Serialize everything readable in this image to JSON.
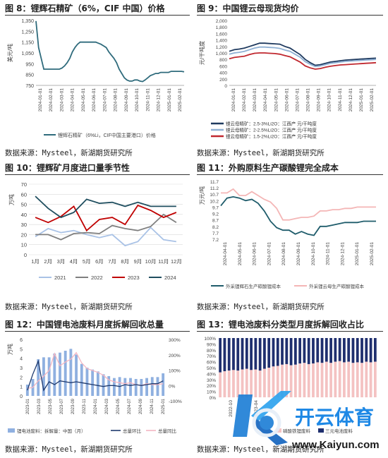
{
  "panels": {
    "p8": {
      "title": "图 8：锂辉石精矿（6%，CIF 中国）价格",
      "source": "数据来源：Mysteel，新湖期货研究所",
      "chart": {
        "type": "line",
        "ylabel": "美元/吨",
        "ylim": [
          750,
          1350
        ],
        "yticks": [
          "750",
          "850",
          "950",
          "1,050",
          "1,150",
          "1,250",
          "1,350"
        ],
        "xticks": [
          "2024-01-01",
          "2024-02-01",
          "2024-03-01",
          "2024-04-01",
          "2024-05-01",
          "2024-06-01",
          "2024-07-01",
          "2024-08-01",
          "2024-09-01",
          "2024-10-01",
          "2024-11-01",
          "2024-12-01",
          "2025-01-01",
          "2025-02-01"
        ],
        "series": [
          {
            "name": "锂辉石精矿（6%Li，CIF中国主要港口）价格",
            "color": "#2f6b7c",
            "values": [
              1345,
              1100,
              1000,
              900,
              900,
              900,
              900,
              900,
              900,
              900,
              910,
              930,
              960,
              1000,
              1060,
              1100,
              1130,
              1150,
              1150,
              1150,
              1150,
              1150,
              1150,
              1150,
              1140,
              1130,
              1115,
              1100,
              1060,
              1030,
              1000,
              960,
              900,
              860,
              820,
              800,
              790,
              790,
              800,
              800,
              790,
              785,
              800,
              820,
              840,
              850,
              860,
              860,
              870,
              870,
              870,
              870,
              880,
              880,
              880,
              880,
              880,
              875
            ]
          }
        ]
      }
    },
    "p9": {
      "title": "图 9：中国锂云母现货均价",
      "source": "数据来源：Mysteel，新湖期货研究所",
      "chart": {
        "type": "line",
        "ylabel": "元/干吨度",
        "ylim": [
          0,
          2000
        ],
        "yticks": [
          "0",
          "200",
          "400",
          "600",
          "800",
          "1,000",
          "1,200",
          "1,400",
          "1,600",
          "1,800",
          "2,000"
        ],
        "xticks": [
          "2024-01-01",
          "2024-02-01",
          "2024-03-01",
          "2024-04-01",
          "2024-05-01",
          "2024-06-01",
          "2024-07-01",
          "2024-08-01",
          "2024-09-01",
          "2024-10-01",
          "2024-11-01",
          "2024-12-01",
          "2025-01-01",
          "2025-02-01"
        ],
        "legend": [
          "锂云母精矿：2.5-3%Li2O：江西产 元/干吨度",
          "锂云母精矿：2-2.5%Li2O：江西产 元/干吨度",
          "锂云母精矿：1.5-2%Li2O：江西产 元/干吨度"
        ],
        "series": [
          {
            "name": "锂云母精矿：2.5-3%Li2O：江西产 元/干吨度",
            "color": "#1f3a5f",
            "values": [
              1050,
              1100,
              1120,
              1150,
              1200,
              1250,
              1300,
              1300,
              1290,
              1280,
              1270,
              1200,
              1150,
              1050,
              950,
              800,
              700,
              620,
              640,
              680,
              720,
              740,
              760,
              780,
              790,
              800,
              810,
              820,
              830,
              840
            ]
          },
          {
            "name": "锂云母精矿：2-2.5%Li2O：江西产 元/干吨度",
            "color": "#8fb0d4",
            "values": [
              960,
              1000,
              1020,
              1050,
              1100,
              1150,
              1180,
              1180,
              1170,
              1160,
              1140,
              1090,
              1050,
              960,
              870,
              730,
              650,
              580,
              600,
              640,
              680,
              700,
              720,
              740,
              750,
              760,
              770,
              780,
              790,
              800
            ]
          },
          {
            "name": "锂云母精矿：1.5-2%Li2O：江西产 元/干吨度",
            "color": "#c0282f",
            "values": [
              820,
              860,
              880,
              900,
              950,
              990,
              1000,
              1000,
              990,
              980,
              960,
              920,
              880,
              800,
              720,
              600,
              540,
              500,
              520,
              560,
              590,
              610,
              630,
              640,
              650,
              660,
              670,
              680,
              690,
              700
            ]
          }
        ]
      }
    },
    "p10": {
      "title": "图 10：锂辉矿月度进口量季节性",
      "source": "数据来源：Mysteel，新湖期货研究所",
      "chart": {
        "type": "line",
        "ylabel": "万吨",
        "ylim": [
          0,
          70
        ],
        "yticks": [
          "0",
          "10",
          "20",
          "30",
          "40",
          "50",
          "60",
          "70"
        ],
        "categories": [
          "1月",
          "2月",
          "3月",
          "4月",
          "5月",
          "6月",
          "7月",
          "8月",
          "9月",
          "10月",
          "11月",
          "12月"
        ],
        "series": [
          {
            "name": "2021",
            "color": "#a9c2e6",
            "values": [
              18,
              26,
              22,
              24,
              20,
              17,
              20,
              9,
              13,
              27,
              15,
              13
            ]
          },
          {
            "name": "2022",
            "color": "#7f7f7f",
            "values": [
              20,
              20,
              15,
              21,
              22,
              21,
              29,
              26,
              24,
              28,
              40,
              32
            ]
          },
          {
            "name": "2023",
            "color": "#c00000",
            "values": [
              37,
              32,
              38,
              48,
              24,
              35,
              37,
              30,
              49,
              44,
              37,
              42
            ]
          },
          {
            "name": "2024",
            "color": "#1f4e5f",
            "values": [
              58,
              46,
              37,
              42,
              55,
              51,
              52,
              48,
              52,
              48,
              48,
              48
            ]
          }
        ]
      }
    },
    "p11": {
      "title": "图 11：外购原料生产碳酸锂完全成本",
      "source": "数据来源：Mysteel，新湖期货研究所",
      "chart": {
        "type": "line",
        "ylabel": "万元/吨",
        "ylim": [
          7.2,
          11.7
        ],
        "yticks": [
          "7.2",
          "7.7",
          "8.2",
          "8.7",
          "9.2",
          "9.7",
          "10.2",
          "10.7",
          "11.2",
          "11.7"
        ],
        "xticks": [
          "2024-04-01",
          "2024-05-01",
          "2024-06-01",
          "2024-07-01",
          "2024-08-01",
          "2024-09-01",
          "2024-10-01",
          "2024-11-01",
          "2024-12-01",
          "2025-01-01",
          "2025-02-01"
        ],
        "series": [
          {
            "name": "外采锂辉石生产碳酸锂成本",
            "color": "#1f5c6b",
            "values": [
              9.8,
              10.4,
              10.5,
              10.4,
              10.2,
              10.3,
              10.0,
              9.4,
              8.6,
              8.1,
              7.9,
              7.9,
              7.6,
              7.8,
              7.6,
              7.5,
              8.2,
              8.2,
              8.3,
              8.4,
              8.5,
              8.5,
              8.5,
              8.6,
              8.6,
              8.6
            ]
          },
          {
            "name": "外采锂云母生产碳酸锂成本",
            "color": "#f4b6b6",
            "values": [
              10.8,
              10.8,
              11.1,
              10.6,
              10.6,
              10.9,
              10.6,
              10.3,
              10.1,
              9.6,
              8.7,
              8.7,
              8.8,
              8.9,
              8.9,
              9.0,
              9.4,
              9.4,
              9.5,
              9.5,
              9.6,
              9.6,
              9.7,
              9.7,
              9.7,
              9.7
            ]
          }
        ]
      }
    },
    "p12": {
      "title": "图 12：中国锂电池废料月度拆解回收总量",
      "source": "数据来源：Mysteel，新湖期货研究所",
      "chart": {
        "type": "bar",
        "ylabel": "万吨",
        "ylim": [
          0,
          6
        ],
        "yticks": [
          "0",
          "1",
          "2",
          "3",
          "4",
          "5",
          "6"
        ],
        "y2ticks": [
          "-100%",
          "0%",
          "100%",
          "200%",
          "300%"
        ],
        "xticks": [
          "2023-01",
          "2023-03",
          "2023-05",
          "2023-07",
          "2023-09",
          "2023-11",
          "2024-01",
          "2024-03",
          "2024-05",
          "2024-07",
          "2024-09",
          "2024-11",
          "2025-01"
        ],
        "legend": [
          "锂电池废料：拆解量：中国（月）",
          "总量环比",
          "总量同比"
        ],
        "bars": [
          1.2,
          1.8,
          3.9,
          4.1,
          4.1,
          4.5,
          4.6,
          4.8,
          5.0,
          4.4,
          3.4,
          3.0,
          2.8,
          2.6,
          2.3,
          2.1,
          1.9,
          2.0,
          1.9,
          1.9,
          1.8,
          1.8,
          1.9,
          2.0,
          2.0,
          2.4
        ],
        "mom": [
          0.6,
          2.3,
          3.7,
          0.6,
          1.5,
          1.2,
          1.6,
          1.5,
          1.4,
          1.5,
          1.4,
          1.3,
          1.2,
          1.1,
          1.0,
          1.1,
          1.1,
          1.0,
          1.2,
          1.1,
          1.2,
          1.1,
          1.2,
          1.3,
          1.3,
          1.6
        ],
        "yoy": [
          0.8,
          0.9,
          1.6,
          2.1,
          2.7,
          4.5,
          3.2,
          3.6,
          3.9,
          4.6,
          3.5,
          2.9,
          2.7,
          2.5,
          2.2,
          1.7,
          1.5,
          1.4,
          1.3,
          1.4,
          1.2,
          1.1,
          1.3,
          1.2,
          1.2,
          1.3
        ]
      }
    },
    "p13": {
      "title": "图 13：锂电池废料分类型月度拆解回收占比",
      "source": "数据来源：Mysteel，新湖期货研究所",
      "chart": {
        "type": "bar",
        "ylim": [
          0,
          100
        ],
        "yticks": [
          "0%",
          "10%",
          "20%",
          "30%",
          "40%",
          "50%",
          "60%",
          "70%",
          "80%",
          "90%",
          "100%"
        ],
        "xticks": [
          "2022-10",
          "2023-04"
        ],
        "legend": [
          "磷酸铁锂废料",
          "三元电池废料"
        ],
        "bottom_share": [
          0.42,
          0.44,
          0.45,
          0.46,
          0.45,
          0.47,
          0.48,
          0.46,
          0.47,
          0.45,
          0.48,
          0.5,
          0.52,
          0.53,
          0.55,
          0.56,
          0.54,
          0.55,
          0.57,
          0.58,
          0.56,
          0.57,
          0.59,
          0.58,
          0.6,
          0.58,
          0.6,
          0.61,
          0.59,
          0.6,
          0.58,
          0.59,
          0.58,
          0.6,
          0.59,
          0.6
        ],
        "colors": {
          "top": "#1f2f6e",
          "bottom": "#f4c2c2"
        }
      }
    }
  },
  "watermark": {
    "text": "开云体育",
    "url": "www.Kaiyun.com"
  }
}
